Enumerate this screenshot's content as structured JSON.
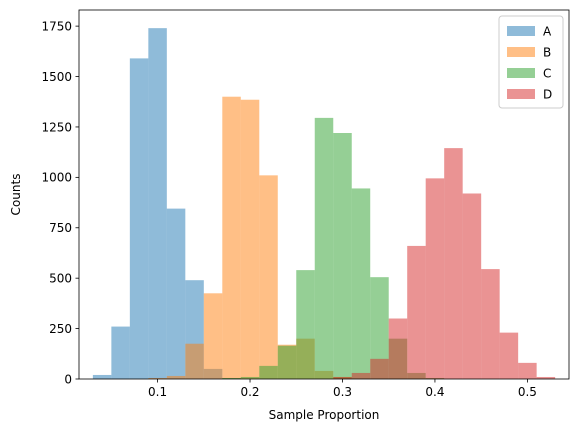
{
  "chart_data": {
    "type": "histogram",
    "title": "",
    "xlabel": "Sample Proportion",
    "ylabel": "Counts",
    "xlim": [
      0.015,
      0.545
    ],
    "ylim": [
      0,
      1830
    ],
    "x_ticks": [
      0.1,
      0.2,
      0.3,
      0.4,
      0.5
    ],
    "x_tick_labels": [
      "0.1",
      "0.2",
      "0.3",
      "0.4",
      "0.5"
    ],
    "y_ticks": [
      0,
      250,
      500,
      750,
      1000,
      1250,
      1500,
      1750
    ],
    "y_tick_labels": [
      "0",
      "250",
      "500",
      "750",
      "1000",
      "1250",
      "1500",
      "1750"
    ],
    "grid": false,
    "legend_position": "top-right",
    "bar_alpha": 0.5,
    "series": [
      {
        "name": "A",
        "color": "#1f77b4",
        "bins": [
          {
            "x0": 0.03,
            "x1": 0.05,
            "value": 20
          },
          {
            "x0": 0.05,
            "x1": 0.07,
            "value": 260
          },
          {
            "x0": 0.07,
            "x1": 0.09,
            "value": 1590
          },
          {
            "x0": 0.09,
            "x1": 0.11,
            "value": 1740
          },
          {
            "x0": 0.11,
            "x1": 0.13,
            "value": 845
          },
          {
            "x0": 0.13,
            "x1": 0.15,
            "value": 490
          },
          {
            "x0": 0.15,
            "x1": 0.17,
            "value": 50
          },
          {
            "x0": 0.17,
            "x1": 0.19,
            "value": 5
          }
        ]
      },
      {
        "name": "B",
        "color": "#ff7f0e",
        "bins": [
          {
            "x0": 0.09,
            "x1": 0.11,
            "value": 5
          },
          {
            "x0": 0.11,
            "x1": 0.13,
            "value": 15
          },
          {
            "x0": 0.13,
            "x1": 0.15,
            "value": 175
          },
          {
            "x0": 0.15,
            "x1": 0.17,
            "value": 425
          },
          {
            "x0": 0.17,
            "x1": 0.19,
            "value": 1400
          },
          {
            "x0": 0.19,
            "x1": 0.21,
            "value": 1385
          },
          {
            "x0": 0.21,
            "x1": 0.23,
            "value": 1010
          },
          {
            "x0": 0.23,
            "x1": 0.25,
            "value": 170
          },
          {
            "x0": 0.25,
            "x1": 0.27,
            "value": 200
          },
          {
            "x0": 0.27,
            "x1": 0.29,
            "value": 40
          },
          {
            "x0": 0.29,
            "x1": 0.31,
            "value": 10
          }
        ]
      },
      {
        "name": "C",
        "color": "#2ca02c",
        "bins": [
          {
            "x0": 0.17,
            "x1": 0.19,
            "value": 5
          },
          {
            "x0": 0.19,
            "x1": 0.21,
            "value": 10
          },
          {
            "x0": 0.21,
            "x1": 0.23,
            "value": 65
          },
          {
            "x0": 0.23,
            "x1": 0.25,
            "value": 165
          },
          {
            "x0": 0.25,
            "x1": 0.27,
            "value": 540
          },
          {
            "x0": 0.27,
            "x1": 0.29,
            "value": 1295
          },
          {
            "x0": 0.29,
            "x1": 0.31,
            "value": 1220
          },
          {
            "x0": 0.31,
            "x1": 0.33,
            "value": 945
          },
          {
            "x0": 0.33,
            "x1": 0.35,
            "value": 505
          },
          {
            "x0": 0.35,
            "x1": 0.37,
            "value": 200
          },
          {
            "x0": 0.37,
            "x1": 0.39,
            "value": 30
          },
          {
            "x0": 0.39,
            "x1": 0.41,
            "value": 5
          }
        ]
      },
      {
        "name": "D",
        "color": "#d62728",
        "bins": [
          {
            "x0": 0.29,
            "x1": 0.31,
            "value": 10
          },
          {
            "x0": 0.31,
            "x1": 0.33,
            "value": 30
          },
          {
            "x0": 0.33,
            "x1": 0.35,
            "value": 100
          },
          {
            "x0": 0.35,
            "x1": 0.37,
            "value": 300
          },
          {
            "x0": 0.37,
            "x1": 0.39,
            "value": 660
          },
          {
            "x0": 0.39,
            "x1": 0.41,
            "value": 995
          },
          {
            "x0": 0.41,
            "x1": 0.43,
            "value": 1145
          },
          {
            "x0": 0.43,
            "x1": 0.45,
            "value": 920
          },
          {
            "x0": 0.45,
            "x1": 0.47,
            "value": 545
          },
          {
            "x0": 0.47,
            "x1": 0.49,
            "value": 230
          },
          {
            "x0": 0.49,
            "x1": 0.51,
            "value": 80
          },
          {
            "x0": 0.51,
            "x1": 0.53,
            "value": 10
          }
        ]
      }
    ]
  }
}
